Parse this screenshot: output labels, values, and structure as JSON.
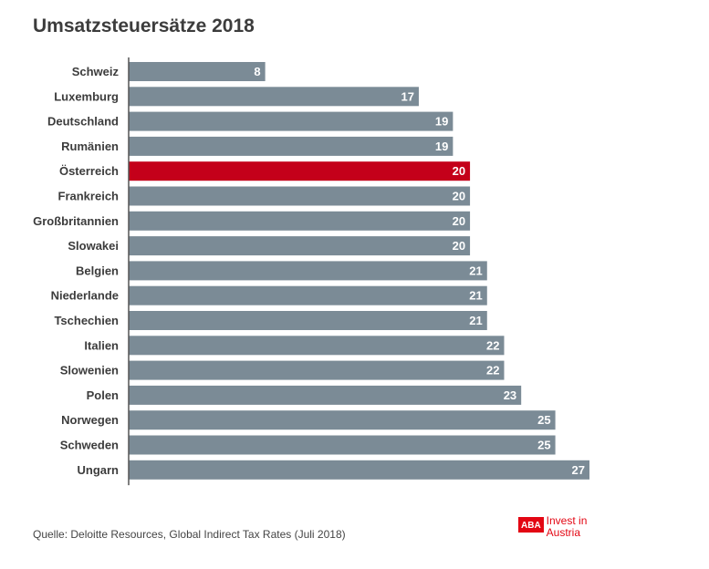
{
  "title": "Umsatzsteuersätze 2018",
  "source": "Quelle: Deloitte Resources, Global Indirect Tax Rates (Juli 2018)",
  "logo": {
    "mark": "ABA",
    "line1": "Invest in",
    "line2": "Austria"
  },
  "colors": {
    "bar": "#7b8b96",
    "highlight": "#c4001a",
    "label": "#3c3c3c",
    "value": "#ffffff",
    "axis": "#555555"
  },
  "chart_data": {
    "type": "bar",
    "orientation": "horizontal",
    "categories": [
      "Schweiz",
      "Luxemburg",
      "Deutschland",
      "Rumänien",
      "Österreich",
      "Frankreich",
      "Großbritannien",
      "Slowakei",
      "Belgien",
      "Niederlande",
      "Tschechien",
      "Italien",
      "Slowenien",
      "Polen",
      "Norwegen",
      "Schweden",
      "Ungarn"
    ],
    "values": [
      8,
      17,
      19,
      19,
      20,
      20,
      20,
      20,
      21,
      21,
      21,
      22,
      22,
      23,
      25,
      25,
      27
    ],
    "highlight_category": "Österreich",
    "xlim": [
      0,
      27
    ],
    "grid": false,
    "legend": "none"
  }
}
